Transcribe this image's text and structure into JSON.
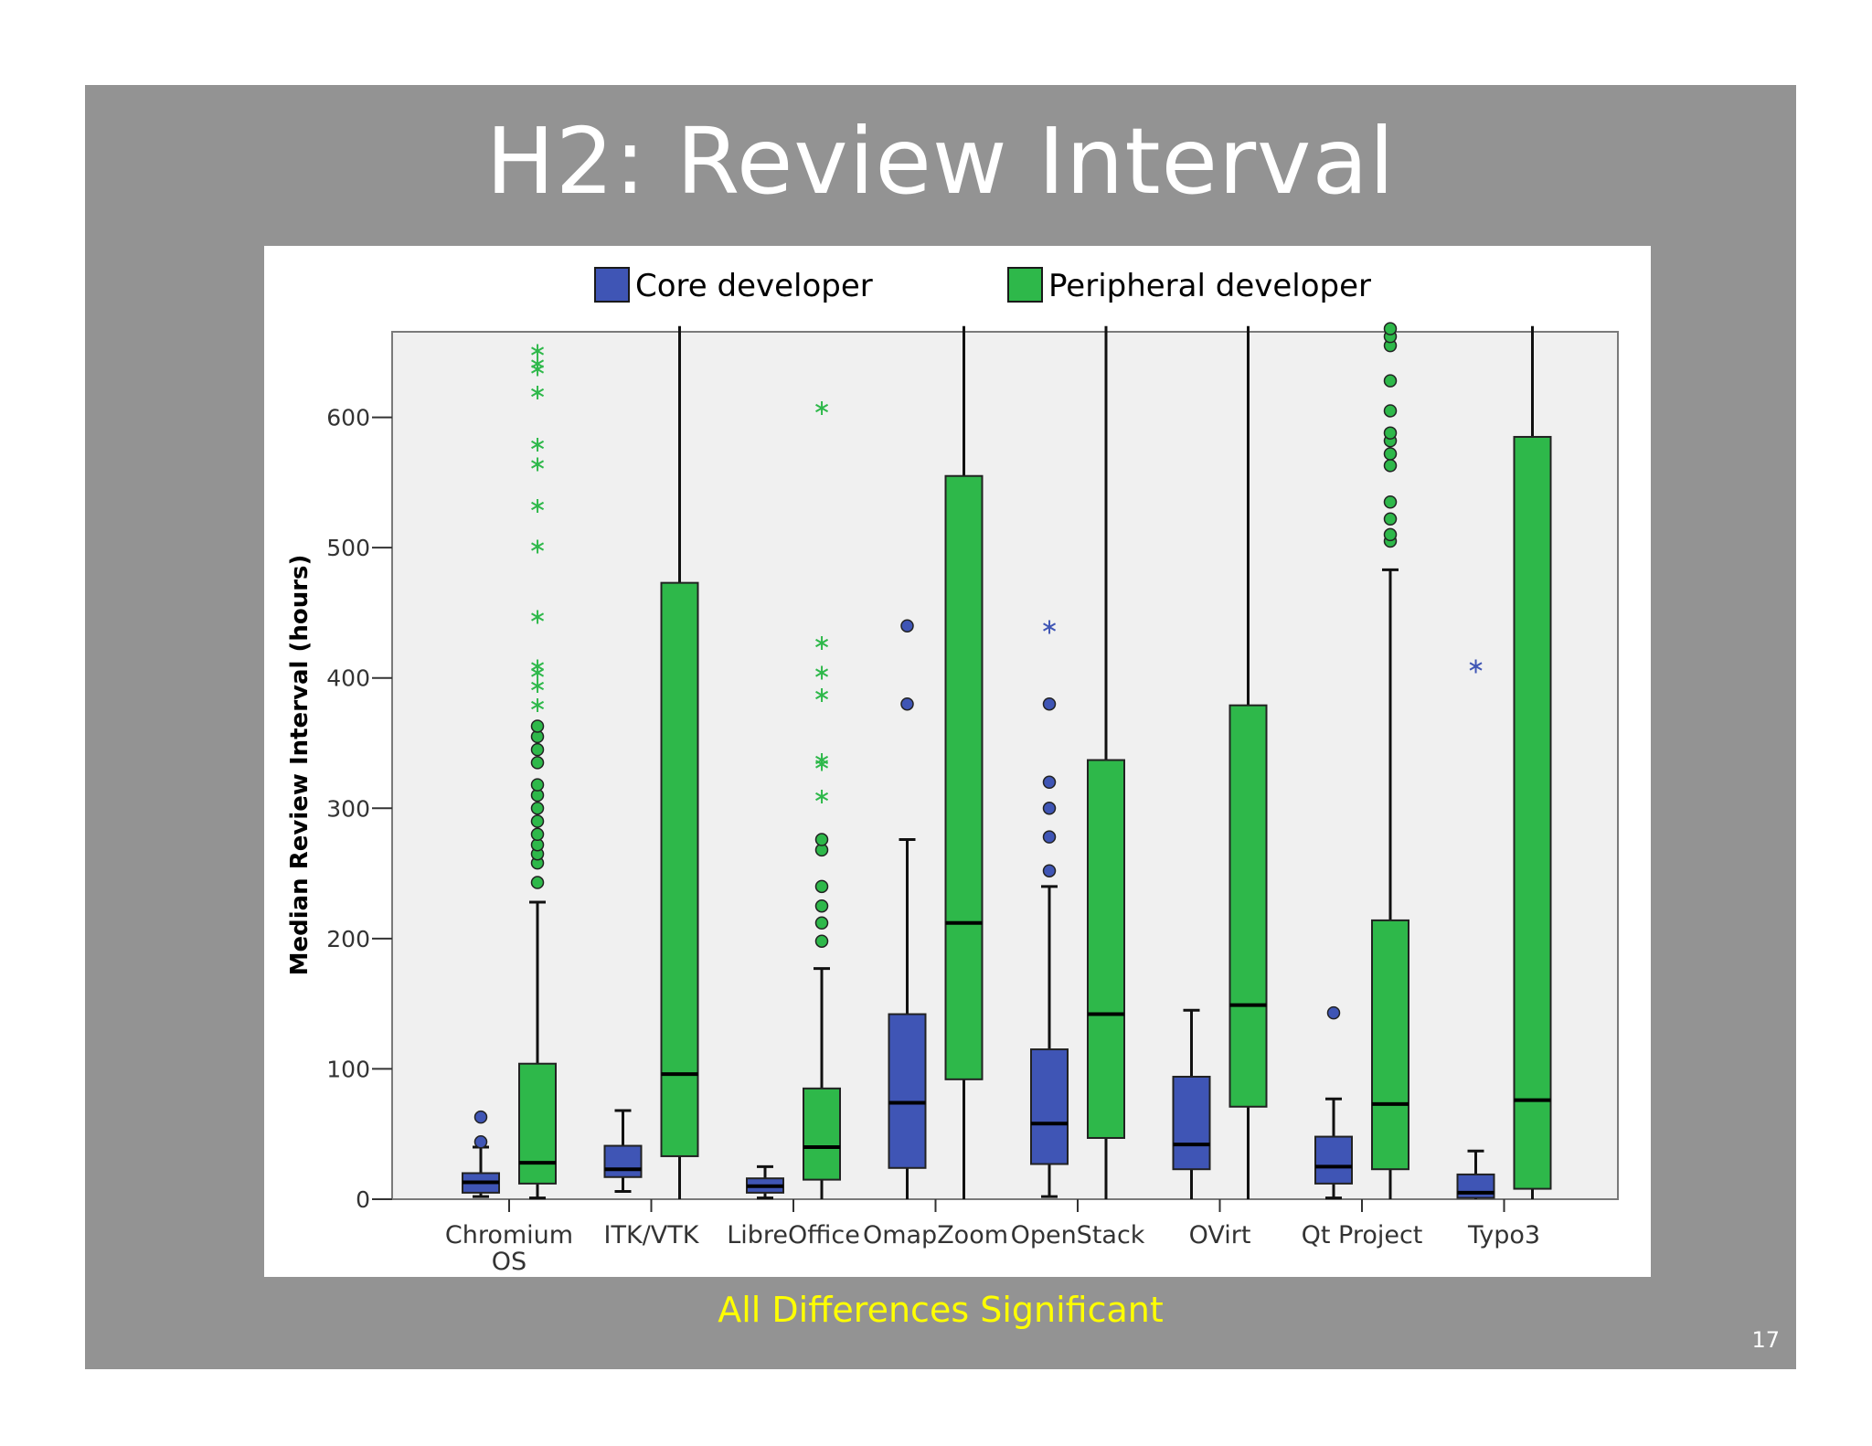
{
  "slide": {
    "title": "H2: Review Interval",
    "footnote": "All Differences Significant",
    "page_number": "17",
    "background": "#939393"
  },
  "chart_data": {
    "type": "boxplot",
    "title": "",
    "xlabel": "",
    "ylabel": "Median Review Interval (hours)",
    "ylim": [
      0,
      670
    ],
    "yticks": [
      0,
      100,
      200,
      300,
      400,
      500,
      600
    ],
    "grid": false,
    "legend_position": "top",
    "categories": [
      "Chromium OS",
      "ITK/VTK",
      "LibreOffice",
      "OmapZoom",
      "OpenStack",
      "OVirt",
      "Qt Project",
      "Typo3"
    ],
    "series": [
      {
        "name": "Core developer",
        "color": "#3f55b5",
        "boxes": [
          {
            "whisker_low": 2,
            "q1": 5,
            "median": 13,
            "q3": 20,
            "whisker_high": 40,
            "outliers": [
              44,
              63
            ],
            "extremes": []
          },
          {
            "whisker_low": 6,
            "q1": 17,
            "median": 23,
            "q3": 41,
            "whisker_high": 68,
            "outliers": [],
            "extremes": []
          },
          {
            "whisker_low": 1,
            "q1": 5,
            "median": 10,
            "q3": 16,
            "whisker_high": 25,
            "outliers": [],
            "extremes": []
          },
          {
            "whisker_low": 0,
            "q1": 24,
            "median": 74,
            "q3": 142,
            "whisker_high": 276,
            "outliers": [
              380,
              440
            ],
            "extremes": []
          },
          {
            "whisker_low": 2,
            "q1": 27,
            "median": 58,
            "q3": 115,
            "whisker_high": 240,
            "outliers": [
              252,
              278,
              300,
              320,
              380
            ],
            "extremes": [
              440
            ]
          },
          {
            "whisker_low": 0,
            "q1": 23,
            "median": 42,
            "q3": 94,
            "whisker_high": 145,
            "outliers": [],
            "extremes": []
          },
          {
            "whisker_low": 1,
            "q1": 12,
            "median": 25,
            "q3": 48,
            "whisker_high": 77,
            "outliers": [
              143
            ],
            "extremes": []
          },
          {
            "whisker_low": 0,
            "q1": 1,
            "median": 5,
            "q3": 19,
            "whisker_high": 37,
            "outliers": [],
            "extremes": [
              410
            ]
          }
        ]
      },
      {
        "name": "Peripheral developer",
        "color": "#2eb84a",
        "boxes": [
          {
            "whisker_low": 1,
            "q1": 12,
            "median": 28,
            "q3": 104,
            "whisker_high": 228,
            "outliers": [
              243,
              258,
              265,
              272,
              280,
              290,
              300,
              310,
              318,
              335,
              345,
              355,
              363
            ],
            "extremes": [
              380,
              395,
              405,
              410,
              448,
              502,
              533,
              565,
              580,
              620,
              638,
              642,
              652
            ]
          },
          {
            "whisker_low": 0,
            "q1": 33,
            "median": 96,
            "q3": 473,
            "whisker_high": 670,
            "outliers": [],
            "extremes": []
          },
          {
            "whisker_low": 0,
            "q1": 15,
            "median": 40,
            "q3": 85,
            "whisker_high": 177,
            "outliers": [
              198,
              212,
              225,
              240,
              268,
              276
            ],
            "extremes": [
              310,
              335,
              338,
              388,
              405,
              428,
              608
            ]
          },
          {
            "whisker_low": 0,
            "q1": 92,
            "median": 212,
            "q3": 555,
            "whisker_high": 670,
            "outliers": [],
            "extremes": []
          },
          {
            "whisker_low": 0,
            "q1": 47,
            "median": 142,
            "q3": 337,
            "whisker_high": 670,
            "outliers": [],
            "extremes": []
          },
          {
            "whisker_low": 0,
            "q1": 71,
            "median": 149,
            "q3": 379,
            "whisker_high": 670,
            "outliers": [],
            "extremes": []
          },
          {
            "whisker_low": 0,
            "q1": 23,
            "median": 73,
            "q3": 214,
            "whisker_high": 483,
            "outliers": [
              505,
              510,
              522,
              535,
              563,
              572,
              582,
              588,
              605,
              628,
              655,
              662,
              668
            ],
            "extremes": []
          },
          {
            "whisker_low": 0,
            "q1": 8,
            "median": 76,
            "q3": 585,
            "whisker_high": 670,
            "outliers": [],
            "extremes": []
          }
        ]
      }
    ]
  }
}
